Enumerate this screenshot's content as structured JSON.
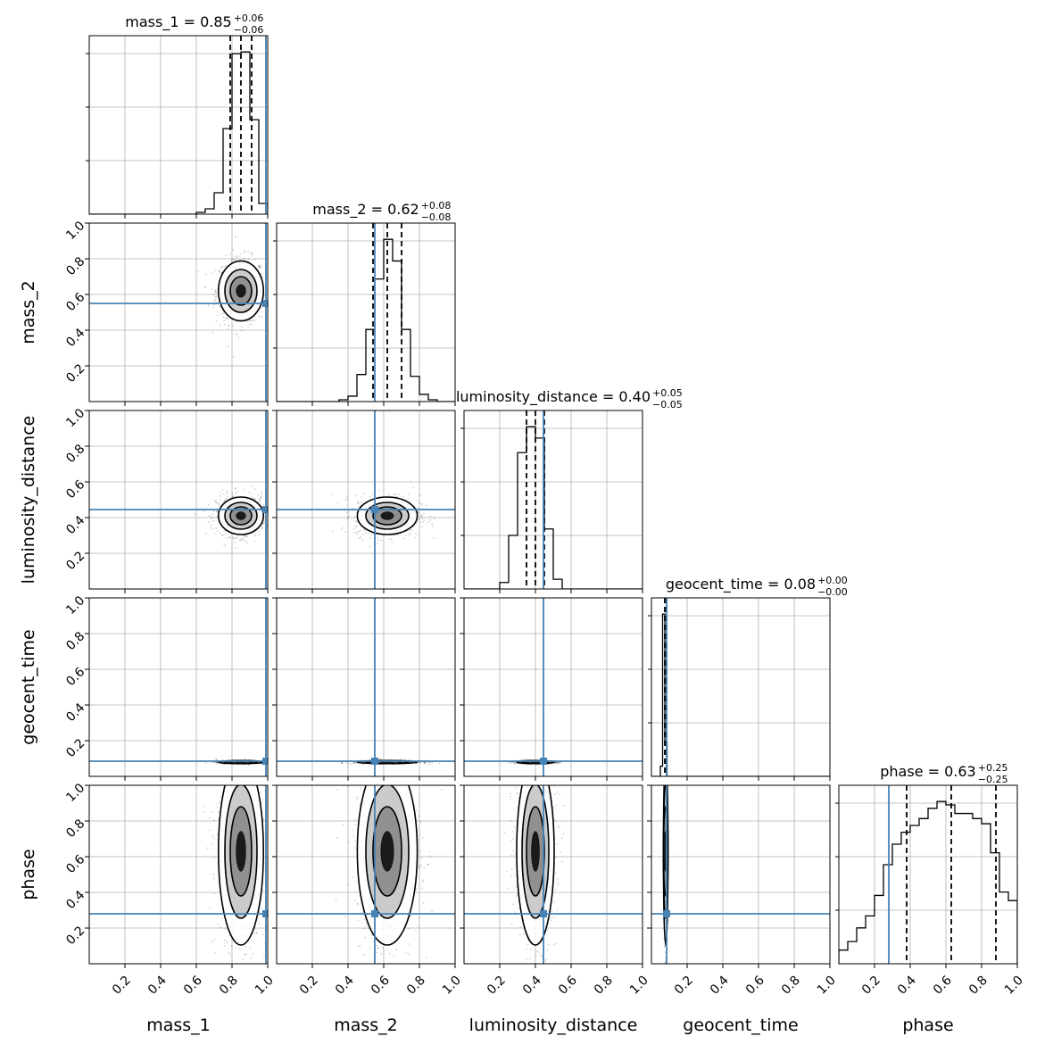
{
  "chart_data": {
    "type": "corner",
    "parameters": [
      "mass_1",
      "mass_2",
      "luminosity_distance",
      "geocent_time",
      "phase"
    ],
    "axis_labels": [
      "mass_1",
      "mass_2",
      "luminosity_distance",
      "geocent_time",
      "phase"
    ],
    "range": [
      0,
      1
    ],
    "ticks": [
      0.2,
      0.4,
      0.6,
      0.8,
      1.0
    ],
    "tick_labels": [
      "0.2",
      "0.4",
      "0.6",
      "0.8",
      "1.0"
    ],
    "grid": true,
    "truth_color": "#4682b4",
    "truths": [
      0.99,
      0.55,
      0.445,
      0.085,
      0.28
    ],
    "titles": [
      {
        "name": "mass_1",
        "median": "0.85",
        "plus": "+0.06",
        "minus": "−0.06",
        "lines": [
          0.79,
          0.85,
          0.91
        ]
      },
      {
        "name": "mass_2",
        "median": "0.62",
        "plus": "+0.08",
        "minus": "−0.08",
        "lines": [
          0.54,
          0.62,
          0.7
        ]
      },
      {
        "name": "luminosity_distance",
        "median": "0.40",
        "plus": "+0.05",
        "minus": "−0.05",
        "lines": [
          0.35,
          0.4,
          0.45
        ]
      },
      {
        "name": "geocent_time",
        "median": "0.08",
        "plus": "+0.00",
        "minus": "−0.00",
        "lines": [
          0.075,
          0.08,
          0.085
        ]
      },
      {
        "name": "phase",
        "median": "0.63",
        "plus": "+0.25",
        "minus": "−0.25",
        "lines": [
          0.38,
          0.63,
          0.88
        ]
      }
    ],
    "histograms": [
      {
        "bins": [
          0.6,
          0.65,
          0.7,
          0.75,
          0.8,
          0.85,
          0.9,
          0.95,
          1.0
        ],
        "counts": [
          1,
          3,
          12,
          48,
          90,
          91,
          53,
          6
        ]
      },
      {
        "bins": [
          0.35,
          0.4,
          0.45,
          0.5,
          0.55,
          0.6,
          0.65,
          0.7,
          0.75,
          0.8,
          0.85,
          0.9,
          0.95
        ],
        "counts": [
          1,
          3,
          15,
          40,
          68,
          90,
          78,
          40,
          14,
          4,
          1,
          0
        ]
      },
      {
        "bins": [
          0.2,
          0.25,
          0.3,
          0.35,
          0.4,
          0.45,
          0.5,
          0.55
        ],
        "counts": [
          4,
          33,
          84,
          100,
          93,
          37,
          6
        ]
      },
      {
        "bins": [
          0.05,
          0.0625,
          0.075,
          0.0875
        ],
        "counts": [
          6,
          96,
          20
        ]
      },
      {
        "bins": [
          0.0,
          0.05,
          0.1,
          0.15,
          0.2,
          0.25,
          0.3,
          0.35,
          0.4,
          0.45,
          0.5,
          0.55,
          0.6,
          0.65,
          0.7,
          0.75,
          0.8,
          0.85,
          0.9,
          0.95,
          1.0
        ],
        "counts": [
          8,
          13,
          21,
          28,
          40,
          58,
          70,
          77,
          81,
          85,
          91,
          95,
          93,
          88,
          88,
          85,
          82,
          65,
          42,
          37
        ]
      }
    ],
    "blobs": [
      {
        "row": 1,
        "col": 0,
        "cx": 0.85,
        "cy": 0.62,
        "sx": 0.06,
        "sy": 0.08
      },
      {
        "row": 2,
        "col": 0,
        "cx": 0.85,
        "cy": 0.41,
        "sx": 0.06,
        "sy": 0.05
      },
      {
        "row": 2,
        "col": 1,
        "cx": 0.62,
        "cy": 0.41,
        "sx": 0.08,
        "sy": 0.05
      },
      {
        "row": 3,
        "col": 0,
        "cx": 0.85,
        "cy": 0.08,
        "sx": 0.06,
        "sy": 0.004
      },
      {
        "row": 3,
        "col": 1,
        "cx": 0.62,
        "cy": 0.08,
        "sx": 0.08,
        "sy": 0.004
      },
      {
        "row": 3,
        "col": 2,
        "cx": 0.4,
        "cy": 0.08,
        "sx": 0.05,
        "sy": 0.004
      },
      {
        "row": 4,
        "col": 0,
        "cx": 0.85,
        "cy": 0.63,
        "sx": 0.06,
        "sy": 0.25
      },
      {
        "row": 4,
        "col": 1,
        "cx": 0.62,
        "cy": 0.63,
        "sx": 0.08,
        "sy": 0.25
      },
      {
        "row": 4,
        "col": 2,
        "cx": 0.4,
        "cy": 0.63,
        "sx": 0.05,
        "sy": 0.25
      },
      {
        "row": 4,
        "col": 3,
        "cx": 0.08,
        "cy": 0.63,
        "sx": 0.004,
        "sy": 0.25
      }
    ]
  }
}
